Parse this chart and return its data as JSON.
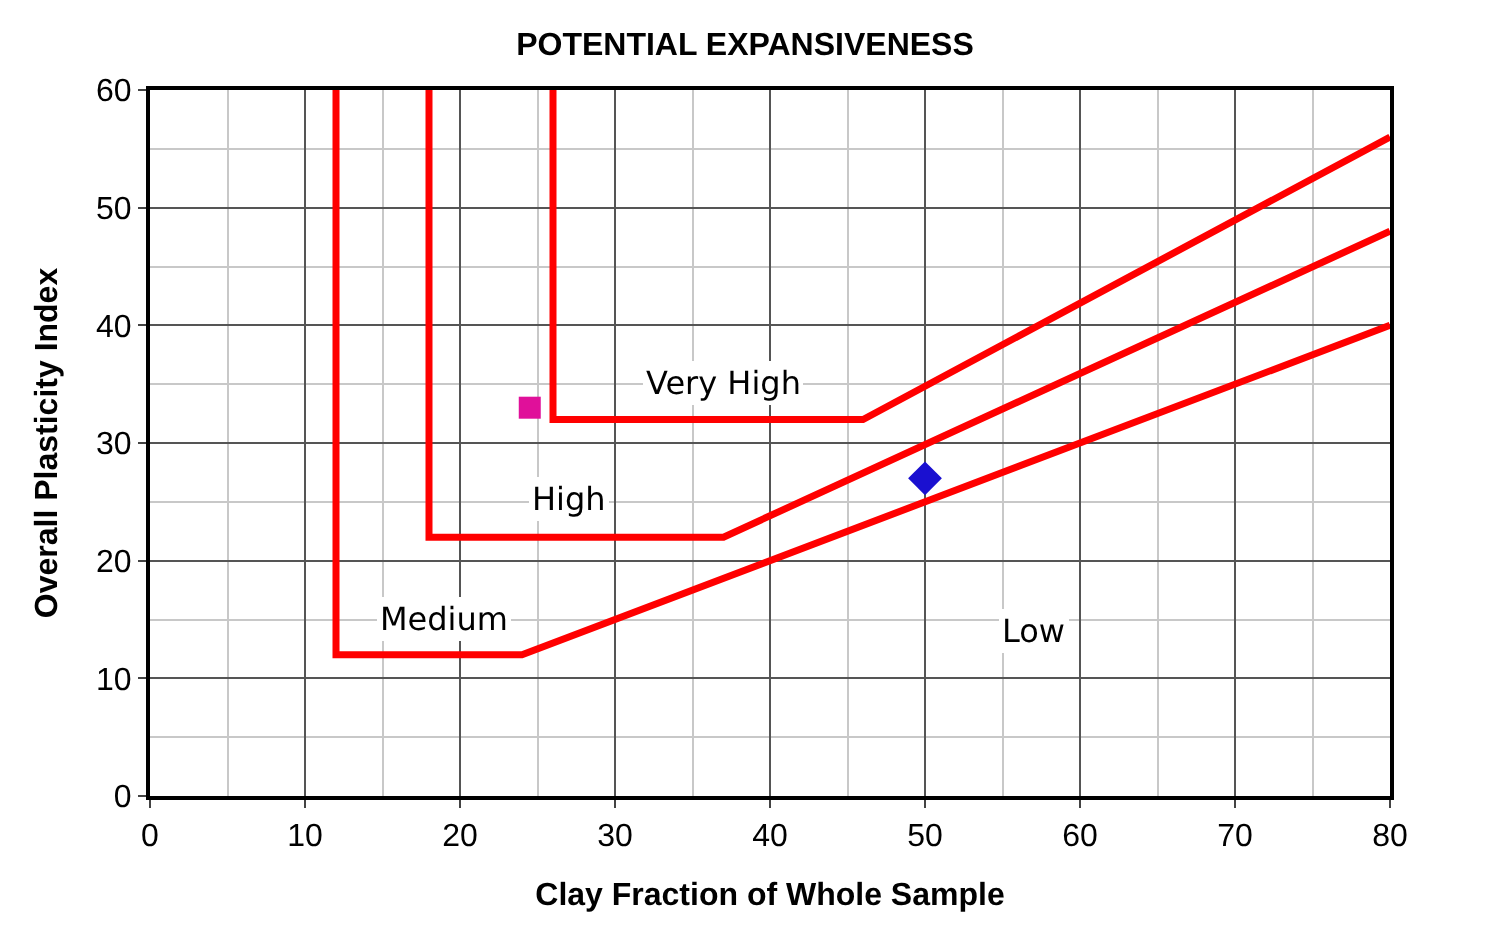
{
  "chart_data": {
    "type": "line",
    "title": "POTENTIAL EXPANSIVENESS",
    "xlabel": "Clay Fraction of Whole Sample",
    "ylabel": "Overall Plasticity Index",
    "xlim": [
      0,
      80
    ],
    "ylim": [
      0,
      60
    ],
    "xticks": [
      0,
      10,
      20,
      30,
      40,
      50,
      60,
      70,
      80
    ],
    "yticks": [
      0,
      10,
      20,
      30,
      40,
      50,
      60
    ],
    "grid": true,
    "series": [
      {
        "color": "#ff0000",
        "marker": "none",
        "x": [
          12,
          12,
          24,
          80
        ],
        "values": [
          60,
          12,
          12,
          40
        ]
      },
      {
        "color": "#ff0000",
        "marker": "none",
        "x": [
          18,
          18,
          37,
          80
        ],
        "values": [
          60,
          22,
          22,
          48
        ]
      },
      {
        "color": "#ff0000",
        "marker": "none",
        "x": [
          26,
          26,
          46,
          80
        ],
        "values": [
          60,
          32,
          32,
          56
        ]
      },
      {
        "type": "scatter",
        "color": "#e0109a",
        "marker": "square",
        "x": [
          24.5
        ],
        "values": [
          33
        ]
      },
      {
        "type": "scatter",
        "color": "#1a10d0",
        "marker": "diamond",
        "x": [
          50
        ],
        "values": [
          27
        ]
      }
    ],
    "annotations": [
      "Very High",
      "High",
      "Medium",
      "Low"
    ]
  }
}
